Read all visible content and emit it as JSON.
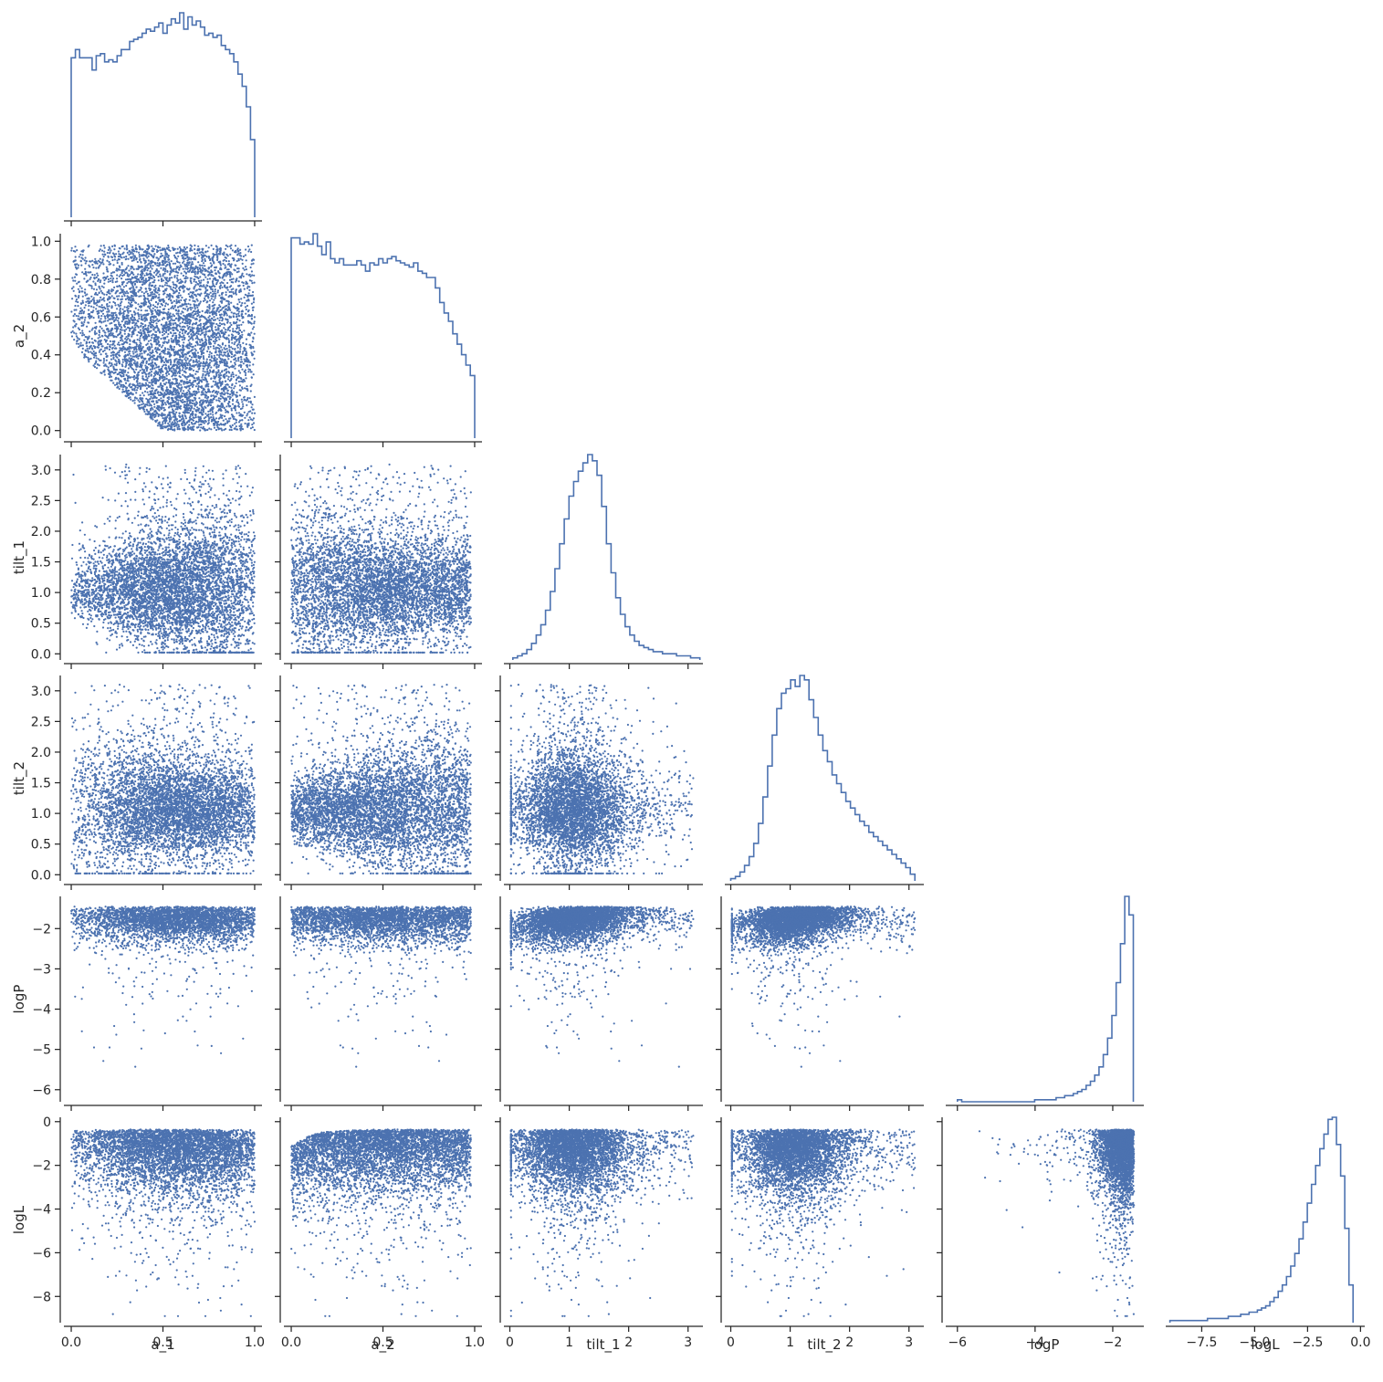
{
  "chart_data": {
    "type": "scatter",
    "layout": "corner-pairplot",
    "color": "#4c72b0",
    "variables": [
      {
        "name": "a_1",
        "label": "a_1",
        "lim": [
          -0.04,
          1.04
        ],
        "ticks": [
          0.0,
          0.5,
          1.0
        ],
        "tick_labels": [
          "0.0",
          "0.5",
          "1.0"
        ]
      },
      {
        "name": "a_2",
        "label": "a_2",
        "lim": [
          -0.04,
          1.04
        ],
        "ticks": [
          0.0,
          0.2,
          0.4,
          0.6,
          0.8,
          1.0
        ],
        "tick_labels": [
          "0.0",
          "0.2",
          "0.4",
          "0.6",
          "0.8",
          "1.0"
        ],
        "x_ticks": [
          0.0,
          0.5,
          1.0
        ],
        "x_tick_labels": [
          "0.0",
          "0.5",
          "1.0"
        ]
      },
      {
        "name": "tilt_1",
        "label": "tilt_1",
        "lim": [
          -0.1,
          3.25
        ],
        "ticks": [
          0.0,
          0.5,
          1.0,
          1.5,
          2.0,
          2.5,
          3.0
        ],
        "tick_labels": [
          "0.0",
          "0.5",
          "1.0",
          "1.5",
          "2.0",
          "2.5",
          "3.0"
        ],
        "x_ticks": [
          0,
          1,
          2,
          3
        ],
        "x_tick_labels": [
          "0",
          "1",
          "2",
          "3"
        ]
      },
      {
        "name": "tilt_2",
        "label": "tilt_2",
        "lim": [
          -0.1,
          3.25
        ],
        "ticks": [
          0.0,
          0.5,
          1.0,
          1.5,
          2.0,
          2.5,
          3.0
        ],
        "tick_labels": [
          "0.0",
          "0.5",
          "1.0",
          "1.5",
          "2.0",
          "2.5",
          "3.0"
        ],
        "x_ticks": [
          0,
          1,
          2,
          3
        ],
        "x_tick_labels": [
          "0",
          "1",
          "2",
          "3"
        ]
      },
      {
        "name": "logP",
        "label": "logP",
        "lim": [
          -6.3,
          -1.2
        ],
        "ticks": [
          -6,
          -5,
          -4,
          -3,
          -2
        ],
        "tick_labels": [
          "−6",
          "−5",
          "−4",
          "−3",
          "−2"
        ],
        "x_ticks": [
          -6,
          -4,
          -2
        ],
        "x_tick_labels": [
          "−6",
          "−4",
          "−2"
        ]
      },
      {
        "name": "logL",
        "label": "logL",
        "lim": [
          -9.2,
          0.2
        ],
        "ticks": [
          -8,
          -6,
          -4,
          -2,
          0
        ],
        "tick_labels": [
          "−8",
          "−6",
          "−4",
          "−2",
          "0"
        ],
        "x_ticks": [
          -7.5,
          -5.0,
          -2.5,
          0.0
        ],
        "x_tick_labels": [
          "−7.5",
          "−5.0",
          "−2.5",
          "0.0"
        ]
      }
    ],
    "histograms": {
      "a_1": {
        "range": [
          0,
          1
        ],
        "counts": [
          78,
          82,
          78,
          78,
          78,
          72,
          79,
          80,
          76,
          77,
          76,
          79,
          82,
          82,
          86,
          87,
          88,
          90,
          92,
          91,
          93,
          95,
          90,
          94,
          97,
          95,
          100,
          92,
          98,
          94,
          96,
          93,
          89,
          90,
          88,
          89,
          84,
          82,
          80,
          76,
          70,
          64,
          54,
          38
        ]
      },
      "a_2": {
        "range": [
          0,
          1
        ],
        "counts": [
          96,
          96,
          93,
          94,
          93,
          98,
          92,
          88,
          94,
          86,
          84,
          86,
          83,
          83,
          83,
          85,
          83,
          80,
          84,
          83,
          86,
          84,
          86,
          87,
          85,
          84,
          83,
          82,
          84,
          80,
          79,
          77,
          77,
          72,
          65,
          60,
          56,
          50,
          45,
          40,
          35,
          30
        ]
      },
      "tilt_1": {
        "range": [
          0.05,
          3.2
        ],
        "counts": [
          1,
          2,
          3,
          5,
          8,
          12,
          17,
          24,
          33,
          44,
          56,
          68,
          79,
          86,
          91,
          95,
          99,
          96,
          89,
          74,
          56,
          42,
          30,
          22,
          16,
          12,
          9,
          7,
          6,
          5,
          4,
          4,
          3,
          3,
          3,
          2,
          2,
          2,
          1,
          1
        ]
      },
      "tilt_2": {
        "range": [
          0.0,
          3.1
        ],
        "counts": [
          1,
          2,
          4,
          7,
          11,
          17,
          26,
          38,
          52,
          66,
          78,
          85,
          87,
          91,
          88,
          93,
          91,
          82,
          74,
          66,
          59,
          54,
          48,
          44,
          40,
          36,
          33,
          30,
          27,
          25,
          22,
          20,
          18,
          16,
          14,
          12,
          10,
          8,
          6,
          3
        ]
      },
      "logP": {
        "range": [
          -6.0,
          -1.47
        ],
        "counts": [
          1,
          0,
          0,
          0,
          0,
          0,
          0,
          0,
          0,
          0,
          0,
          0,
          0,
          0,
          0,
          0,
          0,
          0,
          1,
          1,
          1,
          1,
          1,
          2,
          2,
          3,
          3,
          4,
          5,
          6,
          8,
          10,
          13,
          17,
          23,
          31,
          42,
          58,
          77,
          100,
          91
        ]
      },
      "logL": {
        "range": [
          -9.0,
          -0.35
        ],
        "counts": [
          1,
          1,
          1,
          1,
          1,
          1,
          1,
          1,
          1,
          2,
          2,
          2,
          2,
          2,
          3,
          3,
          3,
          4,
          4,
          5,
          5,
          6,
          7,
          8,
          10,
          12,
          15,
          18,
          22,
          27,
          33,
          40,
          48,
          57,
          66,
          75,
          83,
          90,
          97,
          98,
          85,
          70,
          45,
          18
        ]
      }
    },
    "scatter_point_counts": {
      "a_1|a_2": 5500,
      "a_1|tilt_1": 5500,
      "a_2|tilt_1": 5500,
      "a_1|tilt_2": 5500,
      "a_2|tilt_2": 5500,
      "tilt_1|tilt_2": 5000,
      "a_1|logP": 3500,
      "a_2|logP": 3500,
      "tilt_1|logP": 4500,
      "tilt_2|logP": 4500,
      "a_1|logL": 5000,
      "a_2|logL": 5000,
      "tilt_1|logL": 4500,
      "tilt_2|logL": 4500,
      "logP|logL": 3500
    }
  }
}
